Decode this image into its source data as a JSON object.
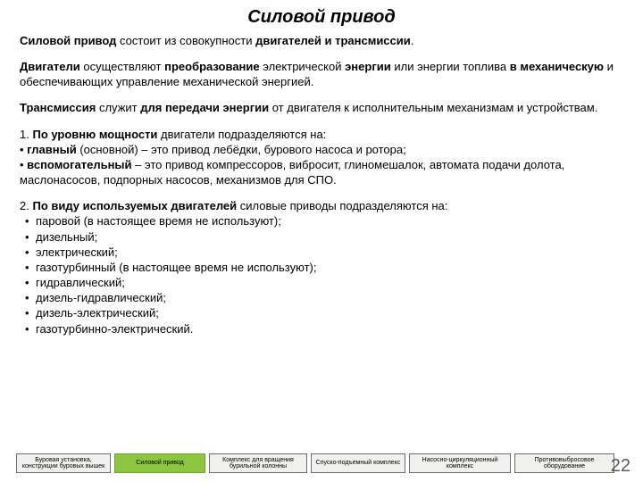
{
  "title": "Силовой привод",
  "p1": {
    "a": "Силовой привод",
    "b": " состоит из совокупности ",
    "c": "двигателей и трансмиссии",
    "d": "."
  },
  "p2": {
    "a": "Двигатели",
    "b": " осуществляют ",
    "c": "преобразование",
    "d": " электрической ",
    "e": "энергии",
    "f": " или энергии топлива ",
    "g": "в механическую",
    "h": " и обеспечивающих управление механической энергией."
  },
  "p3": {
    "a": "Трансмиссия",
    "b": " служит ",
    "c": "для передачи энергии",
    "d": " от двигателя к исполнительным механизмам и устройствам."
  },
  "sec1": {
    "intro_a": "1. ",
    "intro_b": "По уровню мощности",
    "intro_c": " двигатели подразделяются на:",
    "i1_a": "• ",
    "i1_b": "главный",
    "i1_c": " (основной) – это привод лебёдки, бурового насоса и ротора;",
    "i2_a": "• ",
    "i2_b": "вспомогательный",
    "i2_c": " – это привод компрессоров, вибросит, глиномешалок, автомата подачи долота, маслонасосов, подпорных насосов, механизмов для СПО."
  },
  "sec2": {
    "intro_a": "2. ",
    "intro_b": "По виду используемых двигателей",
    "intro_c": " силовые приводы подразделяются на:",
    "items": [
      "паровой (в настоящее время не используют);",
      "дизельный;",
      "электрический;",
      "газотурбинный (в настоящее время не используют);",
      "гидравлический;",
      "дизель-гидравлический;",
      "дизель-электрический;",
      "газотурбинно-электрический."
    ]
  },
  "nav": [
    "Буровая установка, конструкции буровых вышек",
    "Силовой привод",
    "Комплекс для вращения бурильной колонны",
    "Спуско-подъемный комплекс",
    "Насосно-циркуляционный комплекс",
    "Противовыбросовое оборудование"
  ],
  "nav_active_index": 1,
  "page_number": "22",
  "colors": {
    "nav_active_bg": "#8cc63f",
    "nav_bg": "#f0f0ee",
    "nav_border": "#6b6b6b",
    "page_num": "#595959",
    "text": "#000000",
    "background": "#ffffff"
  }
}
